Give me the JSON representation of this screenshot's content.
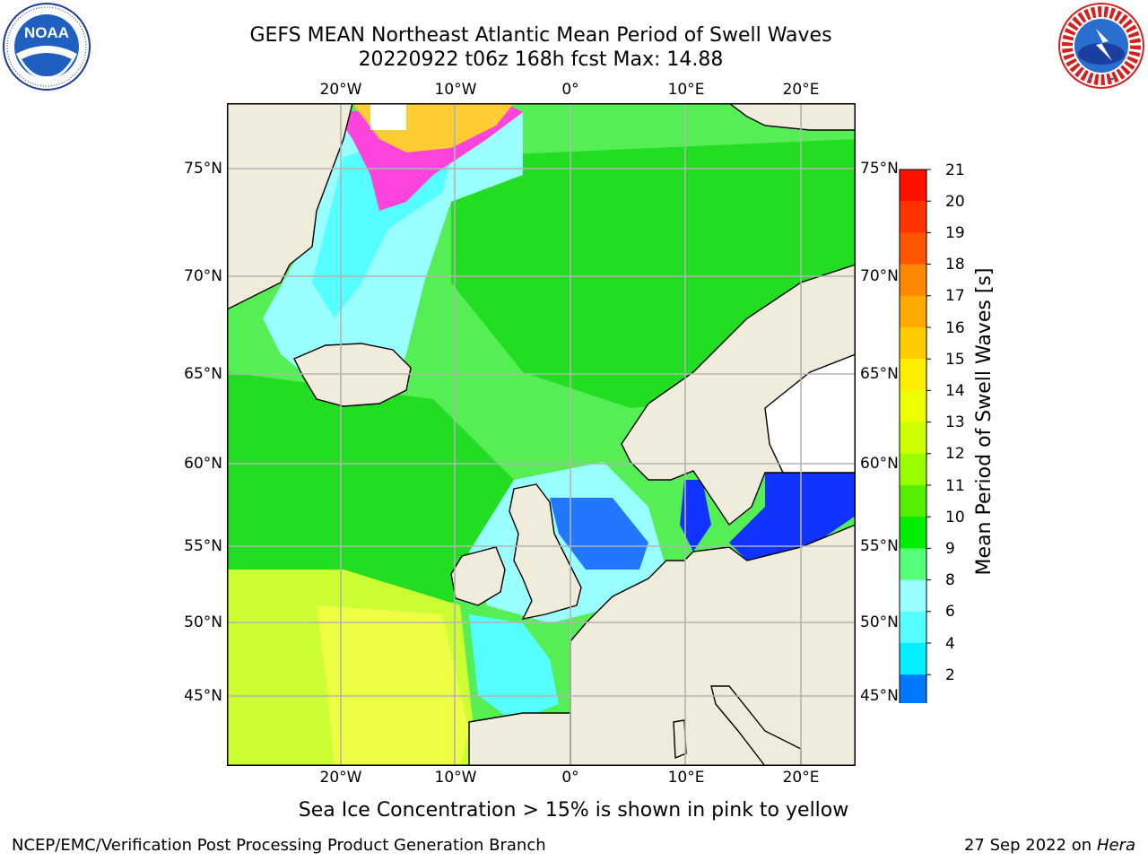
{
  "header": {
    "title_line1": "GEFS MEAN Northeast Atlantic Mean Period of Swell Waves",
    "title_line2": "20220922 t06z 168h fcst   Max: 14.88"
  },
  "logos": {
    "noaa_text": "NOAA",
    "noaa_ring_text": "NATIONAL OCEANIC AND ATMOSPHERIC ADMINISTRATION • U.S. DEPARTMENT OF COMMERCE",
    "nws_ring_text": "NATIONAL WEATHER SERVICE"
  },
  "axes": {
    "lon_ticks": [
      "20°W",
      "10°W",
      "0°",
      "10°E",
      "20°E"
    ],
    "lat_ticks": [
      "75°N",
      "70°N",
      "65°N",
      "60°N",
      "55°N",
      "50°N",
      "45°N"
    ]
  },
  "colorbar": {
    "label": "Mean Period of Swell Waves [s]",
    "ticks": [
      "21",
      "20",
      "19",
      "18",
      "17",
      "16",
      "15",
      "14",
      "13",
      "12",
      "11",
      "10",
      "9",
      "8",
      "6",
      "4",
      "2"
    ],
    "colors": [
      "#ff1100",
      "#ff3300",
      "#ff5500",
      "#ff8800",
      "#ffaa00",
      "#ffcc00",
      "#ffee00",
      "#eeff00",
      "#ccff00",
      "#99ff00",
      "#55ee00",
      "#00ee00",
      "#55ff77",
      "#99ffff",
      "#55ffff",
      "#00eeff",
      "#0077ff",
      "#0011ff"
    ]
  },
  "map": {
    "land_color": "#efecdc",
    "grid_color": "#b3b3b3"
  },
  "note": "Sea Ice Concentration > 15% is shown in pink to yellow",
  "footer": {
    "left": "NCEP/EMC/Verification Post Processing Product Generation Branch",
    "date": "27 Sep 2022 on",
    "host": "Hera"
  }
}
